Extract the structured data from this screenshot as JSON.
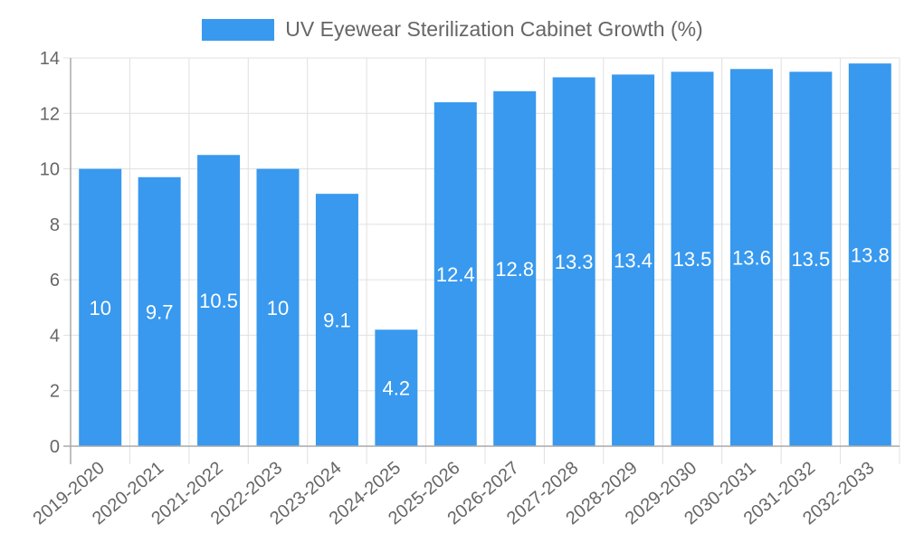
{
  "chart_data": {
    "type": "bar",
    "title": "",
    "xlabel": "",
    "ylabel": "",
    "ylim": [
      0,
      14
    ],
    "yticks": [
      0,
      2,
      4,
      6,
      8,
      10,
      12,
      14
    ],
    "grid": true,
    "legend_position": "top",
    "categories": [
      "2019-2020",
      "2020-2021",
      "2021-2022",
      "2022-2023",
      "2023-2024",
      "2024-2025",
      "2025-2026",
      "2026-2027",
      "2027-2028",
      "2028-2029",
      "2029-2030",
      "2030-2031",
      "2031-2032",
      "2032-2033"
    ],
    "series": [
      {
        "name": "UV Eyewear Sterilization Cabinet Growth (%)",
        "color": "#3899ee",
        "values": [
          10,
          9.7,
          10.5,
          10,
          9.1,
          4.2,
          12.4,
          12.8,
          13.3,
          13.4,
          13.5,
          13.6,
          13.5,
          13.8
        ]
      }
    ]
  },
  "legend": {
    "label": "UV Eyewear Sterilization Cabinet Growth (%)"
  },
  "colors": {
    "bar": "#3899ee",
    "grid": "#e0e0e0",
    "axis": "#aaaaaa",
    "tick_text": "#666666",
    "data_label": "#ffffff"
  }
}
